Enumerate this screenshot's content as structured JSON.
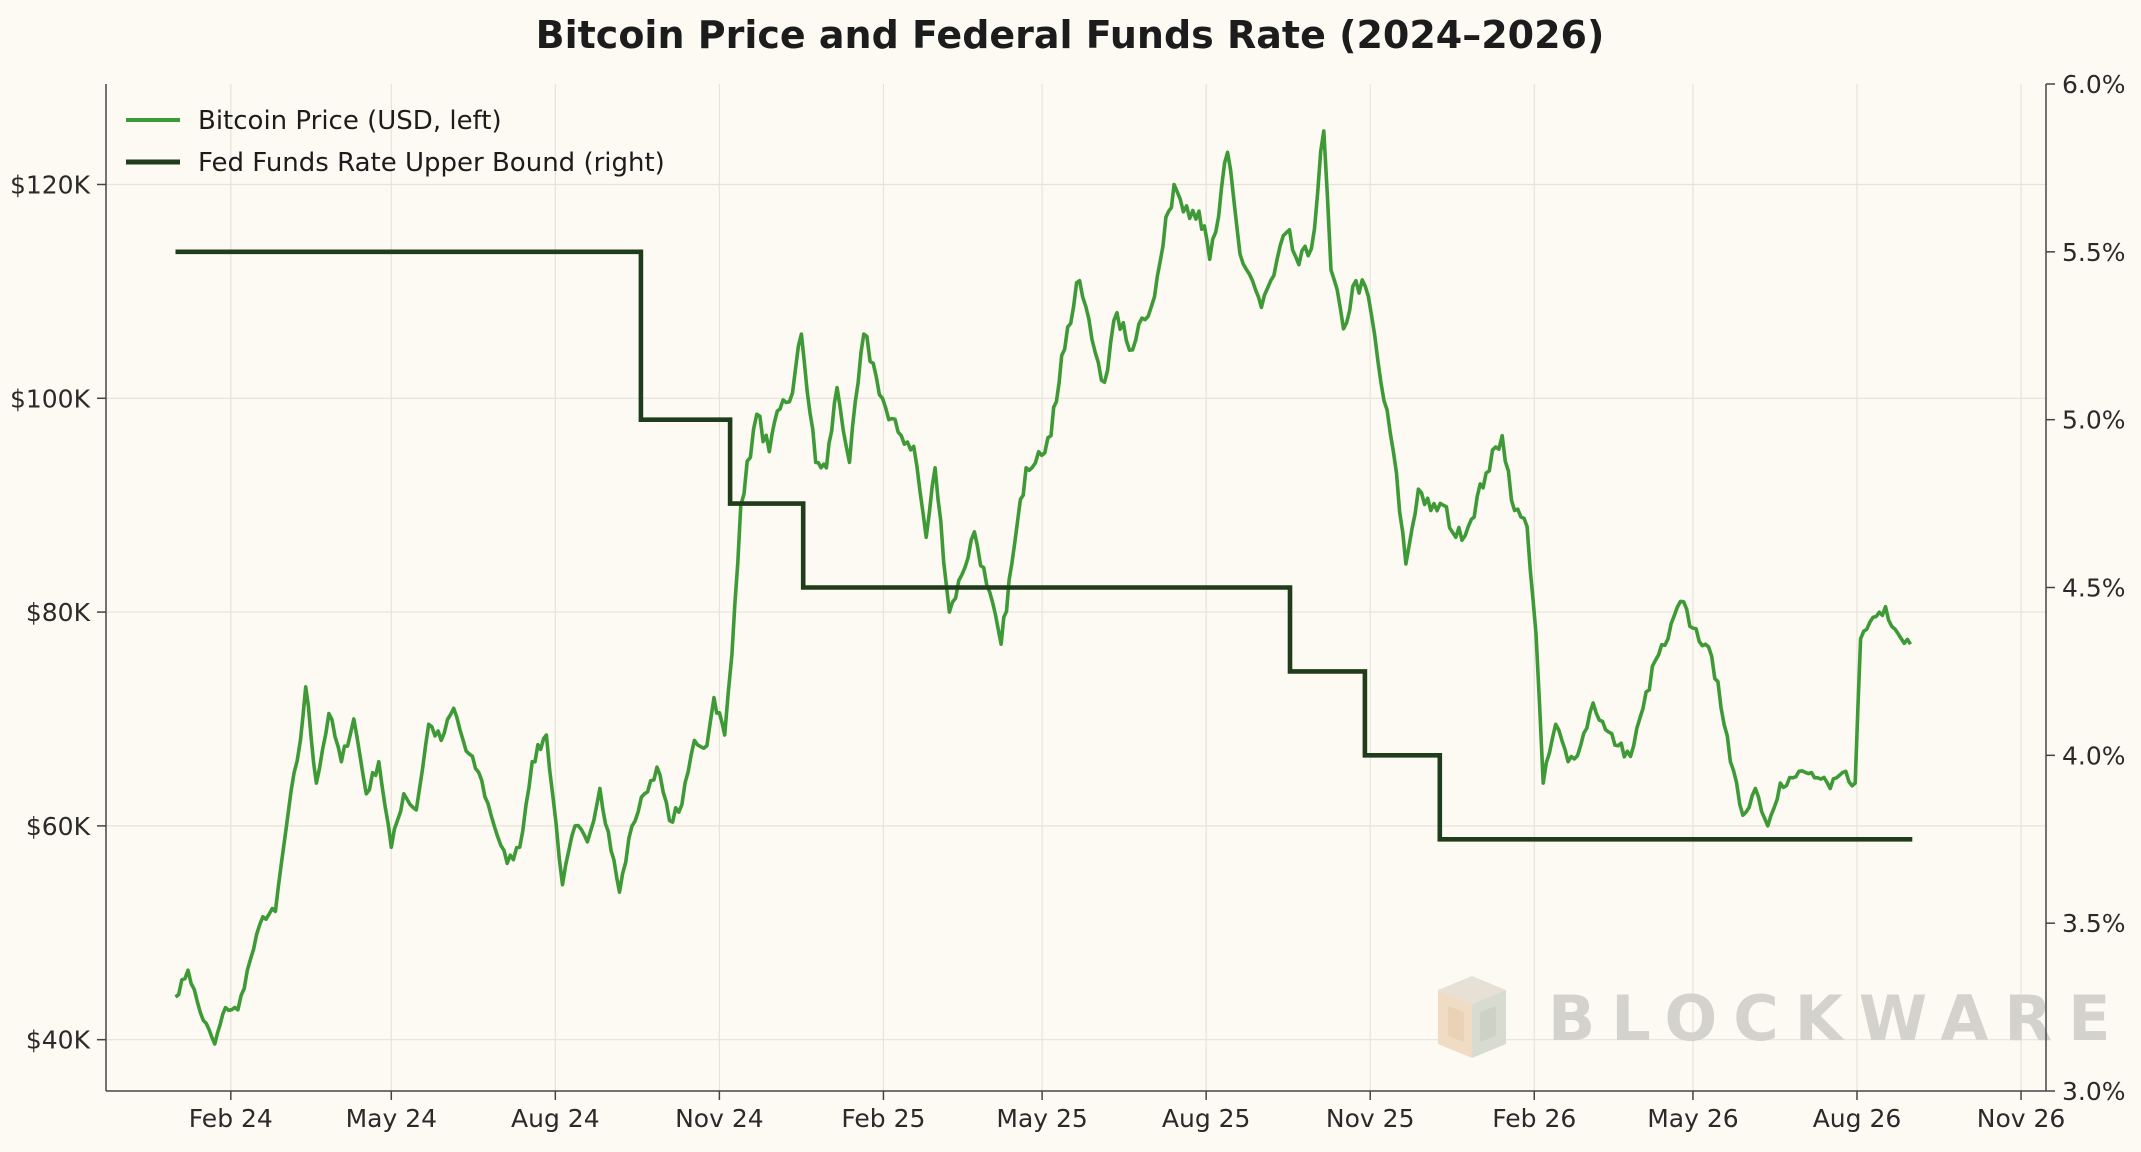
{
  "chart_data": {
    "type": "line",
    "title": "Bitcoin Price and Federal Funds Rate (2024–2026)",
    "x_ticks": [
      "Feb 24",
      "May 24",
      "Aug 24",
      "Nov 24",
      "Feb 25",
      "May 25",
      "Aug 25",
      "Nov 25",
      "Feb 26",
      "May 26",
      "Aug 26",
      "Nov 26"
    ],
    "x_tick_dates": [
      "2024-02-01",
      "2024-05-01",
      "2024-08-01",
      "2024-11-01",
      "2025-02-01",
      "2025-05-01",
      "2025-08-01",
      "2025-11-01",
      "2026-02-01",
      "2026-05-01",
      "2026-08-01",
      "2026-11-01"
    ],
    "xlim": [
      "2023-11-23",
      "2026-11-15"
    ],
    "y_left": {
      "ticks": [
        40000,
        60000,
        80000,
        100000,
        120000
      ],
      "tick_labels": [
        "$40K",
        "$60K",
        "$80K",
        "$100K",
        "$120K"
      ],
      "ylim": [
        35200,
        129400
      ]
    },
    "y_right": {
      "ticks": [
        3.0,
        3.5,
        4.0,
        4.5,
        5.0,
        5.5,
        6.0
      ],
      "tick_labels": [
        "3.0%",
        "3.5%",
        "4.0%",
        "4.5%",
        "5.0%",
        "5.5%",
        "6.0%"
      ],
      "ylim": [
        3.0,
        6.0
      ]
    },
    "grid": true,
    "legend_position": "top-left",
    "series": [
      {
        "name": "Bitcoin Price (USD, left)",
        "axis": "left",
        "color": "#3e9a36",
        "points": [
          [
            "2024-01-01",
            44000
          ],
          [
            "2024-01-08",
            46500
          ],
          [
            "2024-01-15",
            42500
          ],
          [
            "2024-01-23",
            39600
          ],
          [
            "2024-01-29",
            43000
          ],
          [
            "2024-02-05",
            42800
          ],
          [
            "2024-02-12",
            47500
          ],
          [
            "2024-02-19",
            51500
          ],
          [
            "2024-02-26",
            52000
          ],
          [
            "2024-03-04",
            61000
          ],
          [
            "2024-03-11",
            68000
          ],
          [
            "2024-03-14",
            73000
          ],
          [
            "2024-03-20",
            64000
          ],
          [
            "2024-03-27",
            70500
          ],
          [
            "2024-04-03",
            66000
          ],
          [
            "2024-04-10",
            70000
          ],
          [
            "2024-04-17",
            63000
          ],
          [
            "2024-04-24",
            66000
          ],
          [
            "2024-05-01",
            58000
          ],
          [
            "2024-05-08",
            63000
          ],
          [
            "2024-05-15",
            61500
          ],
          [
            "2024-05-22",
            69500
          ],
          [
            "2024-05-29",
            68000
          ],
          [
            "2024-06-05",
            71000
          ],
          [
            "2024-06-12",
            67000
          ],
          [
            "2024-06-19",
            65000
          ],
          [
            "2024-06-26",
            61000
          ],
          [
            "2024-07-05",
            56500
          ],
          [
            "2024-07-12",
            58000
          ],
          [
            "2024-07-19",
            66000
          ],
          [
            "2024-07-27",
            68500
          ],
          [
            "2024-08-05",
            54500
          ],
          [
            "2024-08-12",
            60000
          ],
          [
            "2024-08-19",
            58500
          ],
          [
            "2024-08-26",
            63500
          ],
          [
            "2024-09-06",
            53800
          ],
          [
            "2024-09-13",
            60000
          ],
          [
            "2024-09-20",
            63000
          ],
          [
            "2024-09-27",
            65500
          ],
          [
            "2024-10-04",
            60500
          ],
          [
            "2024-10-11",
            62000
          ],
          [
            "2024-10-18",
            68000
          ],
          [
            "2024-10-25",
            67500
          ],
          [
            "2024-10-29",
            72000
          ],
          [
            "2024-11-04",
            68500
          ],
          [
            "2024-11-08",
            76000
          ],
          [
            "2024-11-13",
            90000
          ],
          [
            "2024-11-22",
            98500
          ],
          [
            "2024-11-29",
            95000
          ],
          [
            "2024-12-05",
            99000
          ],
          [
            "2024-12-12",
            100500
          ],
          [
            "2024-12-17",
            106000
          ],
          [
            "2024-12-25",
            94000
          ],
          [
            "2024-12-31",
            93500
          ],
          [
            "2025-01-06",
            101000
          ],
          [
            "2025-01-13",
            94000
          ],
          [
            "2025-01-21",
            106000
          ],
          [
            "2025-01-28",
            102000
          ],
          [
            "2025-02-04",
            98000
          ],
          [
            "2025-02-11",
            96500
          ],
          [
            "2025-02-18",
            95500
          ],
          [
            "2025-02-25",
            87000
          ],
          [
            "2025-03-02",
            93500
          ],
          [
            "2025-03-10",
            80000
          ],
          [
            "2025-03-17",
            83500
          ],
          [
            "2025-03-24",
            87500
          ],
          [
            "2025-03-31",
            82500
          ],
          [
            "2025-04-08",
            77000
          ],
          [
            "2025-04-14",
            84500
          ],
          [
            "2025-04-22",
            93500
          ],
          [
            "2025-04-29",
            95000
          ],
          [
            "2025-05-06",
            96500
          ],
          [
            "2025-05-12",
            104000
          ],
          [
            "2025-05-22",
            111000
          ],
          [
            "2025-05-29",
            105500
          ],
          [
            "2025-06-05",
            101500
          ],
          [
            "2025-06-12",
            108000
          ],
          [
            "2025-06-19",
            104500
          ],
          [
            "2025-06-26",
            107500
          ],
          [
            "2025-07-03",
            109500
          ],
          [
            "2025-07-11",
            117500
          ],
          [
            "2025-07-14",
            120000
          ],
          [
            "2025-07-21",
            118000
          ],
          [
            "2025-07-28",
            117500
          ],
          [
            "2025-08-03",
            113000
          ],
          [
            "2025-08-08",
            117000
          ],
          [
            "2025-08-13",
            123000
          ],
          [
            "2025-08-20",
            113500
          ],
          [
            "2025-08-27",
            111000
          ],
          [
            "2025-09-01",
            108500
          ],
          [
            "2025-09-08",
            111500
          ],
          [
            "2025-09-15",
            115500
          ],
          [
            "2025-09-22",
            112500
          ],
          [
            "2025-09-29",
            114000
          ],
          [
            "2025-10-06",
            125000
          ],
          [
            "2025-10-10",
            112000
          ],
          [
            "2025-10-17",
            106500
          ],
          [
            "2025-10-24",
            111000
          ],
          [
            "2025-10-31",
            109500
          ],
          [
            "2025-11-07",
            101500
          ],
          [
            "2025-11-14",
            95000
          ],
          [
            "2025-11-21",
            84500
          ],
          [
            "2025-11-28",
            91500
          ],
          [
            "2025-12-05",
            89500
          ],
          [
            "2025-12-12",
            90000
          ],
          [
            "2025-12-19",
            87000
          ],
          [
            "2025-12-26",
            88000
          ],
          [
            "2026-01-05",
            93000
          ],
          [
            "2026-01-14",
            96500
          ],
          [
            "2026-01-21",
            89500
          ],
          [
            "2026-01-28",
            88000
          ],
          [
            "2026-02-02",
            78000
          ],
          [
            "2026-02-06",
            64000
          ],
          [
            "2026-02-13",
            69500
          ],
          [
            "2026-02-20",
            66000
          ],
          [
            "2026-02-27",
            67500
          ],
          [
            "2026-03-06",
            71500
          ],
          [
            "2026-03-13",
            69000
          ],
          [
            "2026-03-20",
            67500
          ],
          [
            "2026-03-27",
            66500
          ],
          [
            "2026-04-03",
            71000
          ],
          [
            "2026-04-10",
            75500
          ],
          [
            "2026-04-17",
            77500
          ],
          [
            "2026-04-24",
            81000
          ],
          [
            "2026-05-01",
            78500
          ],
          [
            "2026-05-08",
            77000
          ],
          [
            "2026-05-15",
            73500
          ],
          [
            "2026-05-22",
            66000
          ],
          [
            "2026-05-29",
            61000
          ],
          [
            "2026-06-05",
            63500
          ],
          [
            "2026-06-12",
            60000
          ],
          [
            "2026-06-19",
            64000
          ],
          [
            "2026-06-26",
            64500
          ],
          [
            "2026-07-03",
            65000
          ],
          [
            "2026-07-10",
            64500
          ],
          [
            "2026-07-17",
            63500
          ],
          [
            "2026-07-24",
            65000
          ],
          [
            "2026-07-31",
            64000
          ],
          [
            "2026-08-03",
            77500
          ],
          [
            "2026-08-10",
            79500
          ],
          [
            "2026-08-17",
            80500
          ],
          [
            "2026-08-24",
            78000
          ],
          [
            "2026-08-31",
            77000
          ]
        ]
      },
      {
        "name": "Fed Funds Rate Upper Bound (right)",
        "axis": "right",
        "color": "#1f3d1a",
        "step": true,
        "points": [
          [
            "2024-01-01",
            5.5
          ],
          [
            "2024-09-18",
            5.0
          ],
          [
            "2024-11-07",
            4.75
          ],
          [
            "2024-12-18",
            4.5
          ],
          [
            "2025-09-17",
            4.25
          ],
          [
            "2025-10-29",
            4.0
          ],
          [
            "2025-12-10",
            3.75
          ],
          [
            "2026-09-01",
            3.75
          ]
        ]
      }
    ]
  },
  "watermark": {
    "text": "BLOCKWARE",
    "color": "#d4d2cc"
  }
}
